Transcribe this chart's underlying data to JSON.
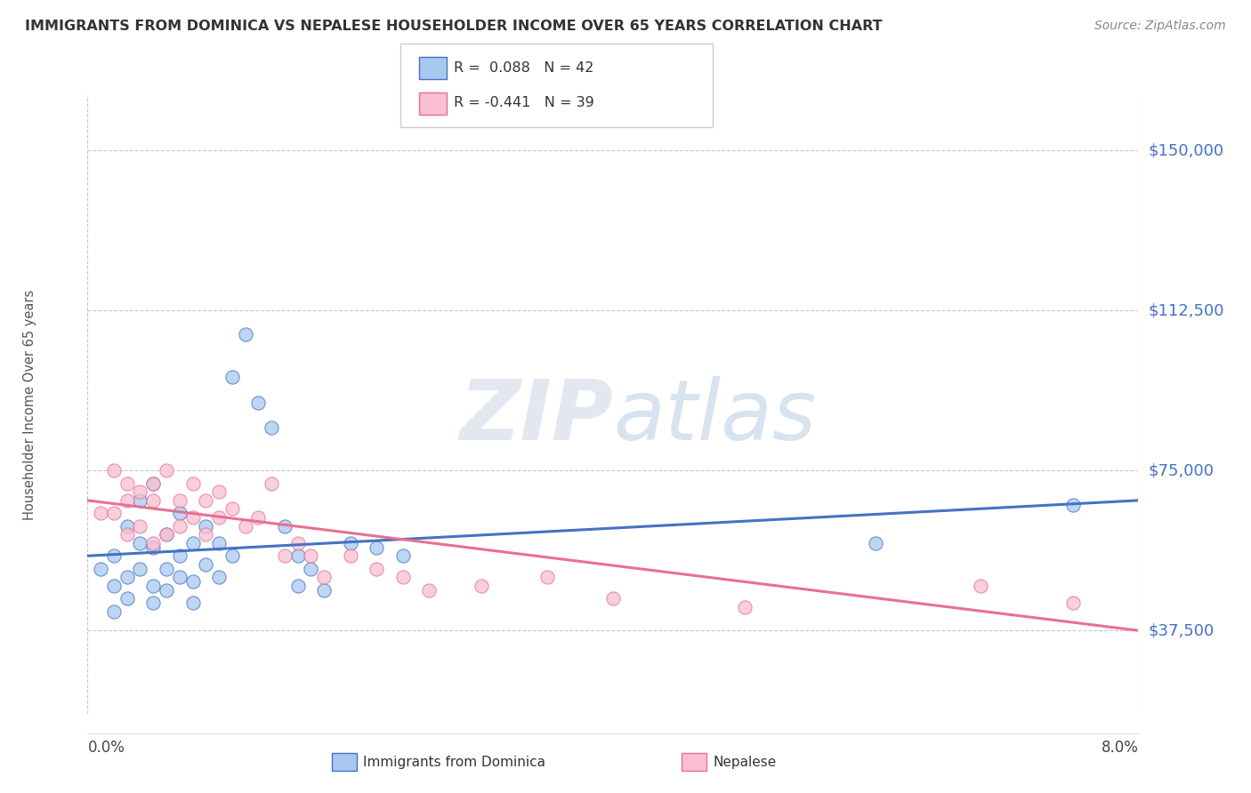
{
  "title": "IMMIGRANTS FROM DOMINICA VS NEPALESE HOUSEHOLDER INCOME OVER 65 YEARS CORRELATION CHART",
  "source": "Source: ZipAtlas.com",
  "ylabel": "Householder Income Over 65 years",
  "xmin": 0.0,
  "xmax": 0.08,
  "ymin": 18000,
  "ymax": 163000,
  "yticks": [
    37500,
    75000,
    112500,
    150000
  ],
  "ytick_labels": [
    "$37,500",
    "$75,000",
    "$112,500",
    "$150,000"
  ],
  "background_color": "#ffffff",
  "grid_color": "#c8c8c8",
  "title_color": "#333333",
  "ytick_color": "#4472c4",
  "watermark_color": "#dde8f5",
  "series1_label": "Immigrants from Dominica",
  "series2_label": "Nepalese",
  "series1_color": "#a8c8f0",
  "series2_color": "#f8c0d0",
  "series1_line_color": "#4472c4",
  "series2_line_color": "#e87090",
  "series1_x": [
    0.001,
    0.002,
    0.002,
    0.002,
    0.003,
    0.003,
    0.003,
    0.004,
    0.004,
    0.004,
    0.005,
    0.005,
    0.005,
    0.005,
    0.006,
    0.006,
    0.006,
    0.007,
    0.007,
    0.007,
    0.008,
    0.008,
    0.008,
    0.009,
    0.009,
    0.01,
    0.01,
    0.011,
    0.011,
    0.012,
    0.013,
    0.014,
    0.015,
    0.016,
    0.016,
    0.017,
    0.018,
    0.02,
    0.022,
    0.024,
    0.06,
    0.075
  ],
  "series1_y": [
    52000,
    48000,
    55000,
    42000,
    62000,
    50000,
    45000,
    58000,
    52000,
    68000,
    48000,
    57000,
    72000,
    44000,
    52000,
    60000,
    47000,
    65000,
    50000,
    55000,
    49000,
    58000,
    44000,
    53000,
    62000,
    50000,
    58000,
    55000,
    97000,
    107000,
    91000,
    85000,
    62000,
    55000,
    48000,
    52000,
    47000,
    58000,
    57000,
    55000,
    58000,
    67000
  ],
  "series2_x": [
    0.001,
    0.002,
    0.002,
    0.003,
    0.003,
    0.003,
    0.004,
    0.004,
    0.005,
    0.005,
    0.005,
    0.006,
    0.006,
    0.007,
    0.007,
    0.008,
    0.008,
    0.009,
    0.009,
    0.01,
    0.01,
    0.011,
    0.012,
    0.013,
    0.014,
    0.015,
    0.016,
    0.017,
    0.018,
    0.02,
    0.022,
    0.024,
    0.026,
    0.03,
    0.035,
    0.04,
    0.05,
    0.068,
    0.075
  ],
  "series2_y": [
    65000,
    75000,
    65000,
    72000,
    68000,
    60000,
    70000,
    62000,
    72000,
    68000,
    58000,
    75000,
    60000,
    68000,
    62000,
    72000,
    64000,
    68000,
    60000,
    70000,
    64000,
    66000,
    62000,
    64000,
    72000,
    55000,
    58000,
    55000,
    50000,
    55000,
    52000,
    50000,
    47000,
    48000,
    50000,
    45000,
    43000,
    48000,
    44000
  ],
  "line1_x0": 0.0,
  "line1_y0": 55000,
  "line1_x1": 0.08,
  "line1_y1": 68000,
  "line2_x0": 0.0,
  "line2_y0": 68000,
  "line2_x1": 0.08,
  "line2_y1": 37500
}
